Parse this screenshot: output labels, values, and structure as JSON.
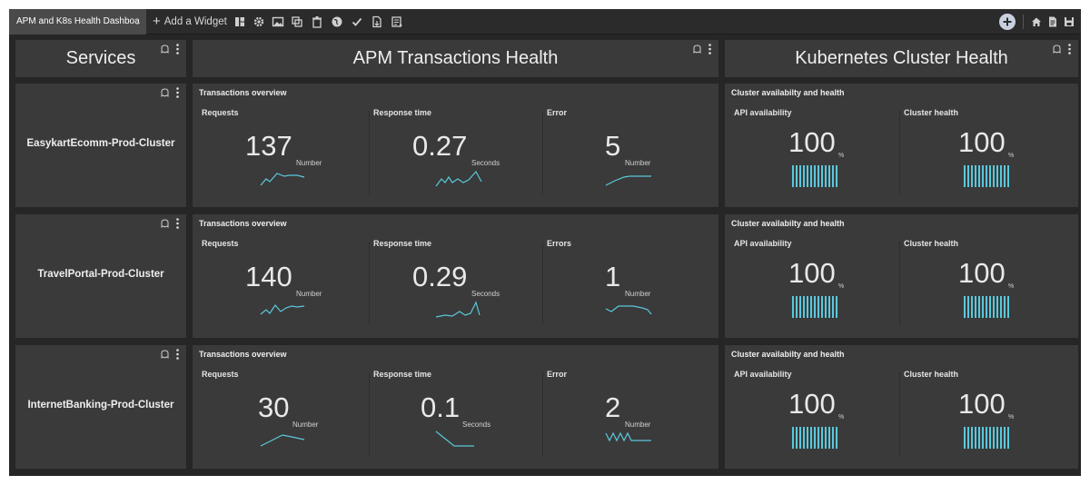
{
  "toolbar": {
    "dashboard_title": "APM and K8s Health Dashboa",
    "add_widget_label": "Add a Widget"
  },
  "headers": {
    "services": "Services",
    "apm": "APM Transactions Health",
    "k8s": "Kubernetes Cluster Health"
  },
  "accent_color": "#5bc8dc",
  "rows": [
    {
      "service": "EasykartEcomm-Prod-Cluster",
      "apm": {
        "title": "Transactions overview",
        "requests": {
          "label": "Requests",
          "value": "137",
          "unit": "Number"
        },
        "response": {
          "label": "Response time",
          "value": "0.27",
          "unit": "Seconds"
        },
        "errors": {
          "label": "Error",
          "value": "5",
          "unit": "Number"
        }
      },
      "k8s": {
        "title": "Cluster availabilty and health",
        "api": {
          "label": "API availability",
          "value": "100",
          "unit": "%"
        },
        "health": {
          "label": "Cluster health",
          "value": "100",
          "unit": "%"
        }
      }
    },
    {
      "service": "TravelPortal-Prod-Cluster",
      "apm": {
        "title": "Transactions overview",
        "requests": {
          "label": "Requests",
          "value": "140",
          "unit": "Number"
        },
        "response": {
          "label": "Response time",
          "value": "0.29",
          "unit": "Seconds"
        },
        "errors": {
          "label": "Errors",
          "value": "1",
          "unit": "Number"
        }
      },
      "k8s": {
        "title": "Cluster availabilty and health",
        "api": {
          "label": "API availability",
          "value": "100",
          "unit": "%"
        },
        "health": {
          "label": "Cluster health",
          "value": "100",
          "unit": "%"
        }
      }
    },
    {
      "service": "InternetBanking-Prod-Cluster",
      "apm": {
        "title": "Transactions overview",
        "requests": {
          "label": "Requests",
          "value": "30",
          "unit": "Number"
        },
        "response": {
          "label": "Response time",
          "value": "0.1",
          "unit": "Seconds"
        },
        "errors": {
          "label": "Error",
          "value": "2",
          "unit": "Number"
        }
      },
      "k8s": {
        "title": "Cluster availabilty and health",
        "api": {
          "label": "API availability",
          "value": "100",
          "unit": "%"
        },
        "health": {
          "label": "Cluster health",
          "value": "100",
          "unit": "%"
        }
      }
    }
  ]
}
